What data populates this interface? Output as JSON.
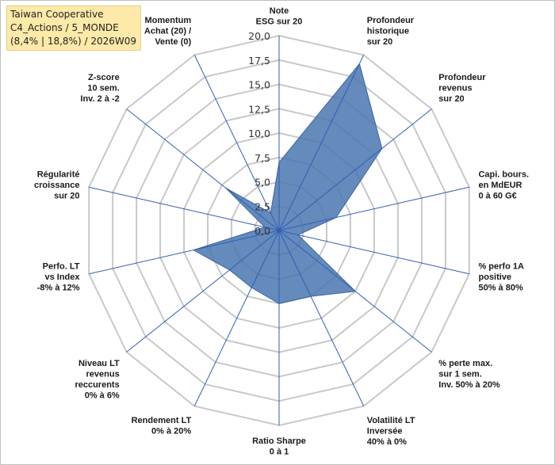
{
  "info": {
    "line1": "Taiwan Cooperative",
    "line2": "C4_Actions / 5_MONDE",
    "line3": "(8,4% | 18,8%) / 2026W09"
  },
  "colors": {
    "fill": "#4a76b0",
    "grid": "#c8c8c8",
    "axis": "#2f5fb3",
    "info_bg": "#fde9a8"
  },
  "chart_data": {
    "type": "radar",
    "rmin": 0,
    "rmax": 20,
    "tick_step": 2.5,
    "tick_labels": [
      "0,0",
      "2,5",
      "5,0",
      "7,5",
      "10,0",
      "12,5",
      "15,0",
      "17,5",
      "20,0"
    ],
    "axes": [
      {
        "label": [
          "Note",
          "ESG sur 20"
        ],
        "value": 7
      },
      {
        "label": [
          "Profondeur",
          "historique",
          "sur 20"
        ],
        "value": 19
      },
      {
        "label": [
          "Profondeur",
          "revenus",
          "sur 20"
        ],
        "value": 13.5
      },
      {
        "label": [
          "Capi. bours.",
          "en MdEUR",
          "0 à 60 G€"
        ],
        "value": 6
      },
      {
        "label": [
          "% perfo 1A",
          "positive",
          "50% à 80%"
        ],
        "value": 2
      },
      {
        "label": [
          "% perte max.",
          "sur 1 sem.",
          "Inv. 50% à 20%"
        ],
        "value": 10
      },
      {
        "label": [
          "Volatilité LT",
          "Inversée",
          "40% à 0%"
        ],
        "value": 7.5
      },
      {
        "label": [
          "Ratio Sharpe",
          "0 à 1"
        ],
        "value": 7.5
      },
      {
        "label": [
          "Rendement LT",
          "0% à 20%"
        ],
        "value": 6.5
      },
      {
        "label": [
          "Niveau LT",
          "revenus",
          "reccurents",
          "0% à 6%"
        ],
        "value": 6.5
      },
      {
        "label": [
          "Perfo. LT",
          "vs Index",
          "-8% à 12%"
        ],
        "value": 9
      },
      {
        "label": [
          "Régularité",
          "croissance",
          "sur 20"
        ],
        "value": 1.5
      },
      {
        "label": [
          "Z-score",
          "10 sem.",
          "Inv. 2 à -2"
        ],
        "value": 7
      },
      {
        "label": [
          "Momentum",
          "Achat (20) /",
          "Vente (0)"
        ],
        "value": 2
      }
    ]
  }
}
